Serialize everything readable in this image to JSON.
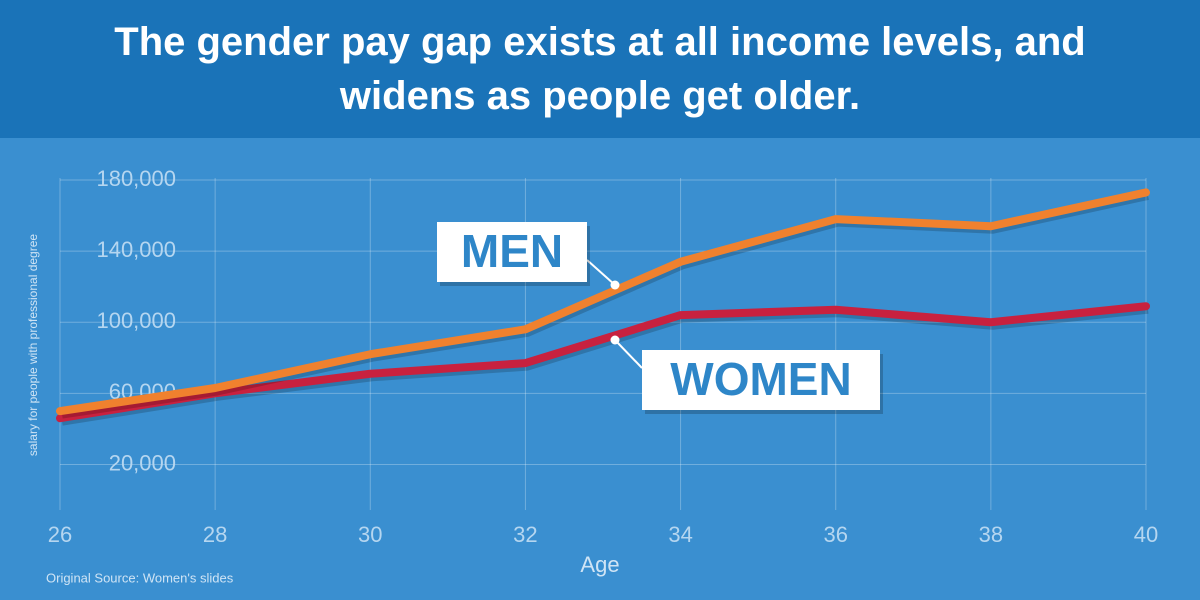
{
  "chart_data": {
    "type": "line",
    "title": "The gender pay gap exists at all income levels, and widens as people get older.",
    "x_label": "Age",
    "y_label": "salary for people with professional degree",
    "source": "Original Source: Women's slides",
    "x": [
      26,
      28,
      30,
      32,
      34,
      36,
      38,
      40
    ],
    "xlim": [
      26,
      40
    ],
    "xticks": [
      26,
      28,
      30,
      32,
      34,
      36,
      38,
      40
    ],
    "ylim": [
      0,
      180000
    ],
    "yticks": [
      {
        "value": 20000,
        "label": "20,000"
      },
      {
        "value": 60000,
        "label": "60,000"
      },
      {
        "value": 100000,
        "label": "100,000"
      },
      {
        "value": 140000,
        "label": "140,000"
      },
      {
        "value": 180000,
        "label": "180,000"
      }
    ],
    "grid": true,
    "series": [
      {
        "name": "MEN",
        "color": "#f0812e",
        "values": [
          50000,
          63000,
          82000,
          96000,
          134000,
          158000,
          154000,
          173000
        ]
      },
      {
        "name": "WOMEN",
        "color": "#c8213f",
        "values": [
          46000,
          60000,
          71000,
          77000,
          104000,
          107000,
          100000,
          109000
        ]
      }
    ]
  }
}
